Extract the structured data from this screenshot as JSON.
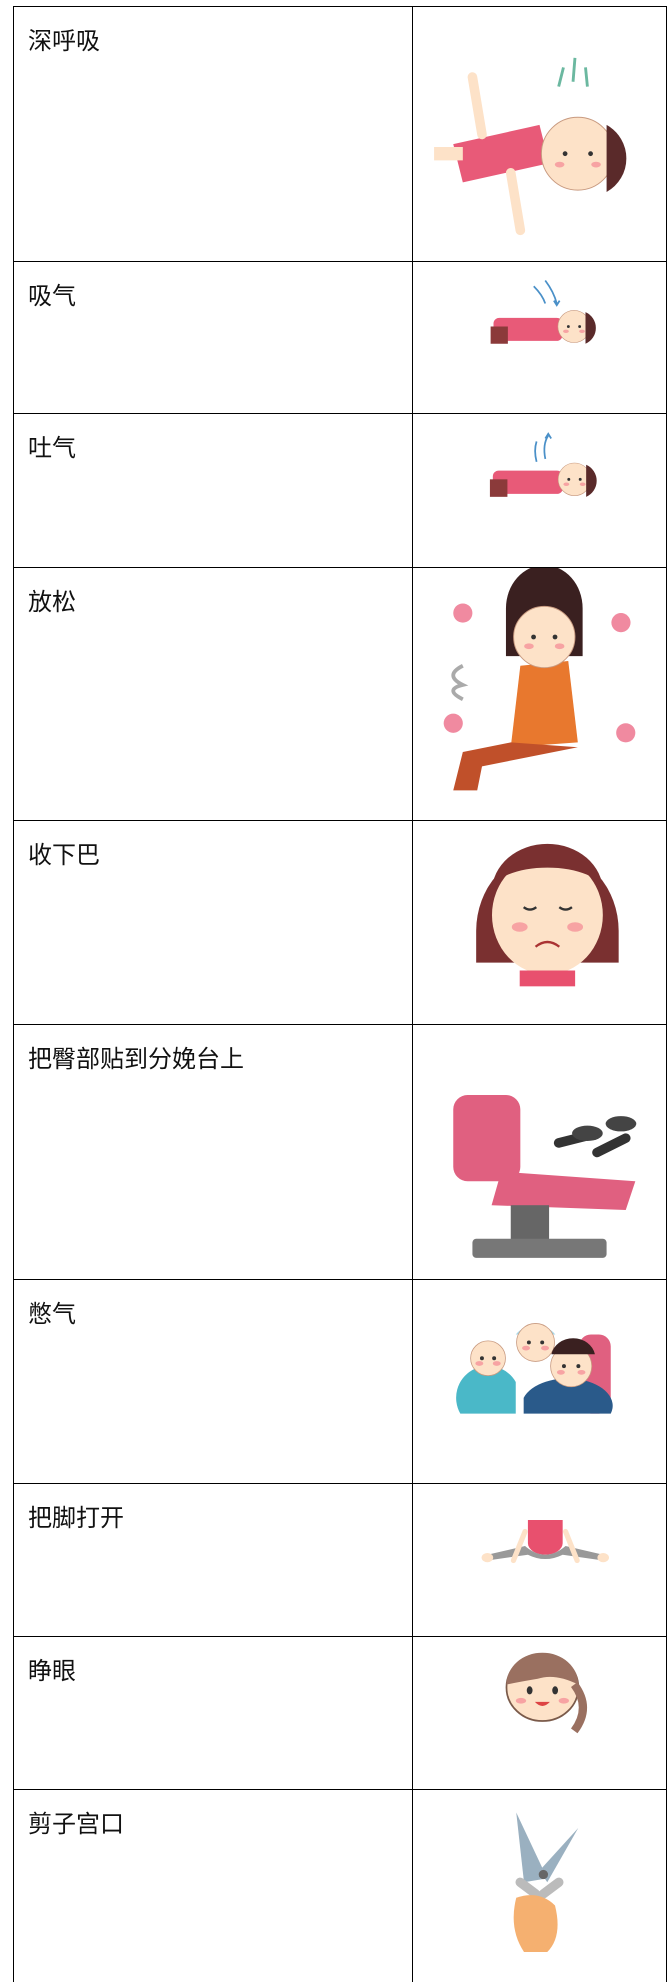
{
  "table": {
    "rows": [
      [
        "深呼吸"
      ],
      [
        "吸气"
      ],
      [
        "吐气"
      ],
      [
        "放松"
      ],
      [
        "收下巴"
      ],
      [
        "把臀部贴到分娩台上"
      ],
      [
        "憋气"
      ],
      [
        "把脚打开"
      ],
      [
        "睁眼"
      ],
      [
        "剪子宫口"
      ]
    ]
  }
}
